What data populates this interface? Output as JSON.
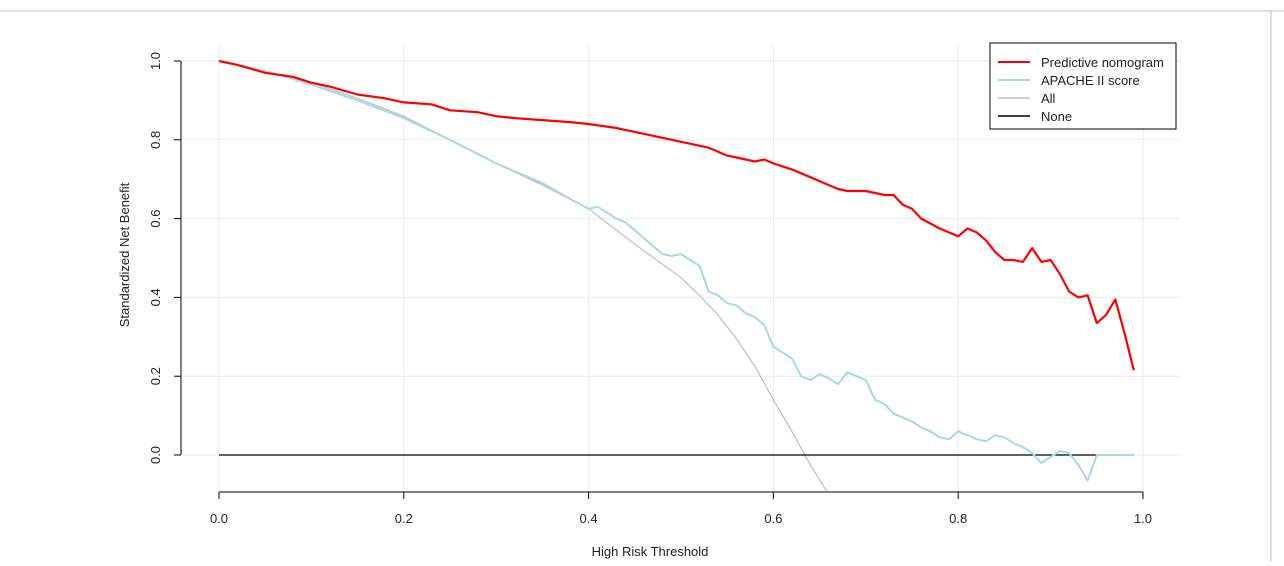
{
  "chart_data": {
    "type": "line",
    "xlabel": "High Risk Threshold",
    "ylabel": "Standardized Net Benefit",
    "xlim": [
      0.0,
      1.0
    ],
    "ylim": [
      -0.1,
      1.0
    ],
    "x_ticks": [
      "0.0",
      "0.2",
      "0.4",
      "0.6",
      "0.8",
      "1.0"
    ],
    "y_ticks": [
      "0.0",
      "0.2",
      "0.4",
      "0.6",
      "0.8",
      "1.0"
    ],
    "grid": true,
    "legend_position": "top-right",
    "series": [
      {
        "name": "Predictive nomogram",
        "color": "#ff0000",
        "x": [
          0.0,
          0.02,
          0.05,
          0.08,
          0.1,
          0.12,
          0.15,
          0.18,
          0.2,
          0.23,
          0.25,
          0.28,
          0.3,
          0.32,
          0.35,
          0.38,
          0.4,
          0.43,
          0.45,
          0.48,
          0.5,
          0.53,
          0.55,
          0.56,
          0.58,
          0.59,
          0.6,
          0.62,
          0.64,
          0.66,
          0.67,
          0.68,
          0.7,
          0.72,
          0.73,
          0.74,
          0.75,
          0.76,
          0.78,
          0.79,
          0.8,
          0.81,
          0.82,
          0.83,
          0.84,
          0.85,
          0.86,
          0.87,
          0.88,
          0.89,
          0.9,
          0.91,
          0.92,
          0.93,
          0.94,
          0.95,
          0.96,
          0.97,
          0.98,
          0.99
        ],
        "y": [
          1.0,
          0.99,
          0.97,
          0.96,
          0.945,
          0.935,
          0.915,
          0.905,
          0.895,
          0.89,
          0.875,
          0.87,
          0.86,
          0.855,
          0.85,
          0.845,
          0.84,
          0.83,
          0.82,
          0.805,
          0.795,
          0.78,
          0.76,
          0.755,
          0.745,
          0.75,
          0.74,
          0.725,
          0.705,
          0.685,
          0.675,
          0.67,
          0.67,
          0.66,
          0.66,
          0.635,
          0.625,
          0.6,
          0.575,
          0.565,
          0.555,
          0.575,
          0.565,
          0.545,
          0.515,
          0.495,
          0.495,
          0.49,
          0.525,
          0.49,
          0.495,
          0.46,
          0.415,
          0.4,
          0.405,
          0.335,
          0.355,
          0.395,
          0.31,
          0.215
        ]
      },
      {
        "name": "APACHE II score",
        "color": "#a6d8ea",
        "x": [
          0.0,
          0.05,
          0.1,
          0.15,
          0.2,
          0.25,
          0.3,
          0.35,
          0.38,
          0.4,
          0.41,
          0.42,
          0.43,
          0.44,
          0.45,
          0.46,
          0.47,
          0.48,
          0.49,
          0.5,
          0.51,
          0.52,
          0.53,
          0.54,
          0.55,
          0.56,
          0.57,
          0.58,
          0.59,
          0.6,
          0.61,
          0.62,
          0.63,
          0.64,
          0.65,
          0.66,
          0.67,
          0.68,
          0.69,
          0.7,
          0.71,
          0.72,
          0.73,
          0.74,
          0.75,
          0.76,
          0.77,
          0.78,
          0.79,
          0.8,
          0.81,
          0.82,
          0.83,
          0.84,
          0.85,
          0.86,
          0.87,
          0.88,
          0.89,
          0.9,
          0.91,
          0.92,
          0.93,
          0.94,
          0.95,
          0.96,
          0.97,
          0.98,
          0.99
        ],
        "y": [
          1.0,
          0.975,
          0.94,
          0.9,
          0.855,
          0.8,
          0.74,
          0.69,
          0.65,
          0.625,
          0.63,
          0.615,
          0.6,
          0.59,
          0.57,
          0.55,
          0.53,
          0.51,
          0.505,
          0.51,
          0.495,
          0.48,
          0.415,
          0.405,
          0.385,
          0.38,
          0.36,
          0.35,
          0.33,
          0.275,
          0.26,
          0.245,
          0.2,
          0.19,
          0.205,
          0.195,
          0.18,
          0.21,
          0.2,
          0.19,
          0.14,
          0.13,
          0.105,
          0.095,
          0.085,
          0.07,
          0.06,
          0.045,
          0.04,
          0.06,
          0.05,
          0.04,
          0.035,
          0.05,
          0.045,
          0.03,
          0.02,
          0.005,
          -0.02,
          -0.005,
          0.01,
          0.005,
          -0.025,
          -0.065,
          0.0,
          0.0,
          0.0,
          0.0,
          0.0
        ]
      },
      {
        "name": "All",
        "color": "#bebebe",
        "x": [
          0.0,
          0.05,
          0.1,
          0.15,
          0.2,
          0.25,
          0.3,
          0.35,
          0.4,
          0.45,
          0.5,
          0.52,
          0.54,
          0.56,
          0.58,
          0.6,
          0.62,
          0.64,
          0.66
        ],
        "y": [
          1.0,
          0.975,
          0.945,
          0.905,
          0.86,
          0.8,
          0.74,
          0.685,
          0.625,
          0.535,
          0.45,
          0.405,
          0.355,
          0.295,
          0.225,
          0.14,
          0.06,
          -0.025,
          -0.1
        ]
      },
      {
        "name": "None",
        "color": "#000000",
        "x": [
          0.0,
          0.99
        ],
        "y": [
          0.0,
          0.0
        ]
      }
    ]
  }
}
